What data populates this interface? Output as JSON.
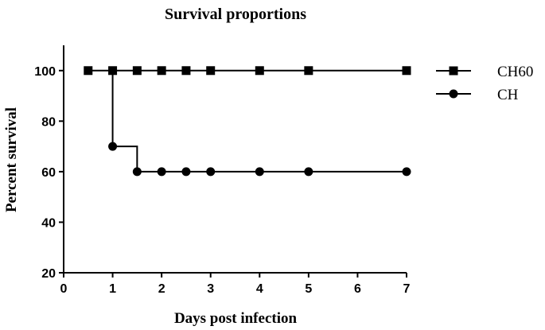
{
  "chart_data": {
    "type": "line",
    "step": true,
    "title": "Survival proportions",
    "xlabel": "Days post infection",
    "ylabel": "Percent survival",
    "xlim": [
      0,
      7
    ],
    "ylim": [
      20,
      110
    ],
    "xticks": [
      0,
      1,
      2,
      3,
      4,
      5,
      6,
      7
    ],
    "yticks": [
      20,
      40,
      60,
      80,
      100
    ],
    "grid": false,
    "legend_position": "right",
    "series": [
      {
        "name": "CH60",
        "marker": "square",
        "color": "#000000",
        "x": [
          0.5,
          1,
          1.5,
          2,
          2.5,
          3,
          4,
          5,
          7
        ],
        "y": [
          100,
          100,
          100,
          100,
          100,
          100,
          100,
          100,
          100
        ]
      },
      {
        "name": "CH",
        "marker": "circle",
        "color": "#000000",
        "x": [
          1,
          1.5,
          2,
          2.5,
          3,
          4,
          5,
          7
        ],
        "y": [
          70,
          60,
          60,
          60,
          60,
          60,
          60,
          60
        ],
        "step_from": [
          1,
          100
        ]
      }
    ]
  }
}
